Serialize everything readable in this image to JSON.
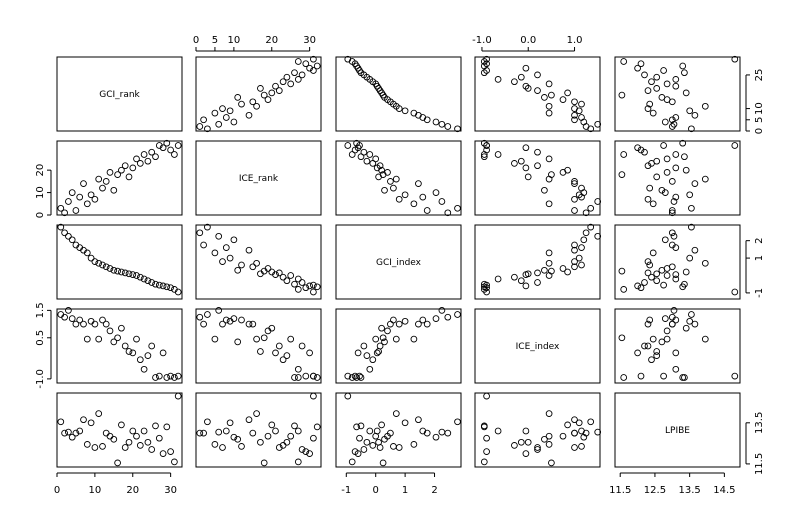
{
  "chart_data": {
    "type": "scatter",
    "variables": [
      "GCI_rank",
      "ICE_rank",
      "GCI_index",
      "ICE_index",
      "LPIBE"
    ],
    "ranges": {
      "GCI_rank": [
        0,
        33
      ],
      "ICE_rank": [
        0,
        33
      ],
      "GCI_index": [
        -1.35,
        2.9
      ],
      "ICE_index": [
        -1.15,
        1.55
      ],
      "LPIBE": [
        11.35,
        14.95
      ]
    },
    "axis_ticks": {
      "GCI_rank": [
        0,
        5,
        10,
        15,
        20,
        25,
        30
      ],
      "ICE_rank": [
        0,
        10,
        20,
        30
      ],
      "GCI_index": [
        -1,
        0,
        1,
        2
      ],
      "ICE_index": [
        -1.0,
        0.5,
        1.5
      ],
      "LPIBE": [
        11.5,
        12.5,
        13.5,
        14.5
      ]
    },
    "tick_labels": {
      "top": {
        "col": 1,
        "ticks": [
          "0",
          "5",
          "10",
          "20",
          "30"
        ],
        "values": [
          0,
          5,
          10,
          20,
          30
        ]
      },
      "top2": {
        "col": 3,
        "ticks": [
          "-1.0",
          "0.0",
          "1.0"
        ],
        "values": [
          -1.0,
          0.0,
          1.0
        ]
      },
      "bottom0": {
        "col": 0,
        "ticks": [
          "0",
          "10",
          "20",
          "30"
        ],
        "values": [
          0,
          10,
          20,
          30
        ]
      },
      "bottom2": {
        "col": 2,
        "ticks": [
          "-1",
          "0",
          "1",
          "2"
        ],
        "values": [
          -1,
          0,
          1,
          2
        ]
      },
      "bottom4": {
        "col": 4,
        "ticks": [
          "11.5",
          "12.5",
          "13.5",
          "14.5"
        ],
        "values": [
          11.5,
          12.5,
          13.5,
          14.5
        ]
      },
      "left1": {
        "row": 1,
        "ticks": [
          "0",
          "10",
          "20"
        ],
        "values": [
          0,
          10,
          20
        ]
      },
      "left3": {
        "row": 3,
        "ticks": [
          "-1.0",
          "0.5",
          "1.5"
        ],
        "values": [
          -1.0,
          0.5,
          1.5
        ]
      },
      "right0": {
        "row": 0,
        "ticks": [
          "0",
          "5",
          "10",
          "25"
        ],
        "values": [
          0,
          5,
          10,
          25
        ]
      },
      "right2": {
        "row": 2,
        "ticks": [
          "-1",
          "1",
          "2"
        ],
        "values": [
          -1,
          1,
          2
        ]
      },
      "right4": {
        "row": 4,
        "ticks": [
          "11.5",
          "13.5"
        ],
        "values": [
          11.5,
          13.5
        ]
      }
    },
    "observations": {
      "GCI_rank": [
        1,
        2,
        3,
        4,
        5,
        6,
        7,
        8,
        9,
        10,
        11,
        12,
        13,
        14,
        15,
        16,
        17,
        18,
        19,
        20,
        21,
        22,
        23,
        24,
        25,
        26,
        27,
        28,
        29,
        30,
        31,
        32
      ],
      "ICE_rank": [
        3,
        1,
        6,
        10,
        2,
        8,
        14,
        5,
        9,
        7,
        16,
        12,
        15,
        19,
        11,
        18,
        20,
        22,
        17,
        21,
        25,
        23,
        27,
        24,
        28,
        26,
        31,
        30,
        32,
        29,
        27,
        31
      ],
      "GCI_index": [
        2.78,
        2.45,
        2.25,
        2.05,
        1.75,
        1.6,
        1.45,
        1.3,
        1.0,
        0.8,
        0.7,
        0.6,
        0.5,
        0.4,
        0.3,
        0.25,
        0.2,
        0.15,
        0.1,
        0.05,
        0.0,
        -0.1,
        -0.2,
        -0.3,
        -0.4,
        -0.5,
        -0.55,
        -0.6,
        -0.65,
        -0.7,
        -0.8,
        -0.95
      ],
      "ICE_index": [
        1.35,
        1.25,
        1.5,
        1.2,
        1.0,
        1.15,
        1.0,
        0.45,
        1.1,
        1.0,
        0.45,
        1.15,
        1.0,
        0.75,
        0.35,
        0.5,
        0.85,
        0.2,
        0.0,
        -0.05,
        0.45,
        -0.3,
        -0.65,
        -0.15,
        0.2,
        -0.95,
        -0.9,
        -0.05,
        -0.95,
        -0.9,
        -0.95,
        -0.9
      ],
      "LPIBE": [
        13.55,
        13.0,
        13.05,
        12.8,
        13.0,
        13.1,
        13.65,
        12.45,
        13.5,
        12.3,
        13.95,
        12.35,
        13.0,
        12.85,
        12.7,
        11.55,
        13.4,
        12.3,
        12.55,
        13.1,
        12.85,
        12.4,
        13.1,
        12.55,
        12.2,
        13.35,
        12.75,
        12.0,
        13.3,
        12.1,
        11.6,
        14.8
      ]
    }
  }
}
